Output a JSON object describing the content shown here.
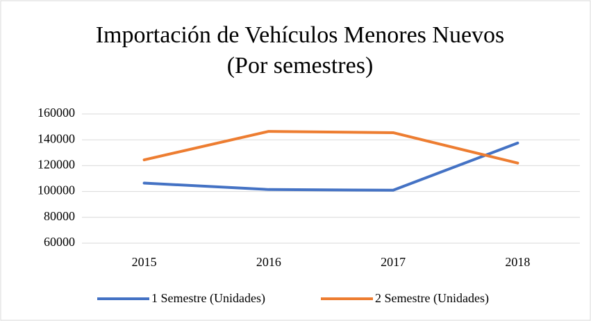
{
  "chart_data": {
    "type": "line",
    "title": "Importación de Vehículos Menores Nuevos",
    "subtitle": "(Por semestres)",
    "categories": [
      "2015",
      "2016",
      "2017",
      "2018"
    ],
    "series": [
      {
        "name": "1 Semestre (Unidades)",
        "color": "#4472c4",
        "values": [
          106500,
          101500,
          101000,
          137500
        ]
      },
      {
        "name": "2 Semestre (Unidades)",
        "color": "#ed7d31",
        "values": [
          124500,
          146500,
          145500,
          122000
        ]
      }
    ],
    "ylim": [
      60000,
      160000
    ],
    "yticks": [
      60000,
      80000,
      100000,
      120000,
      140000,
      160000
    ],
    "grid": true,
    "legend": "bottom"
  }
}
